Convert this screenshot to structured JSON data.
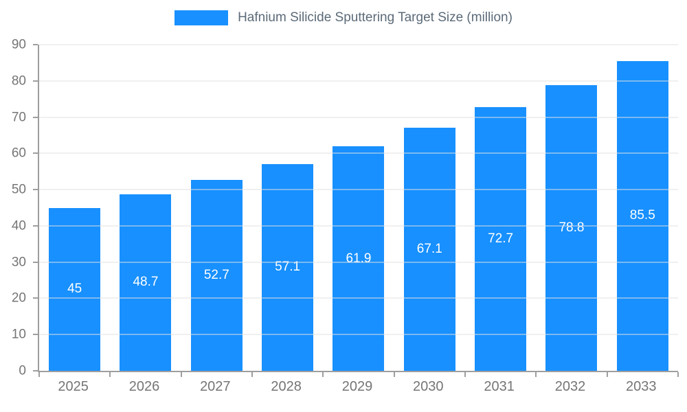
{
  "chart_data": {
    "type": "bar",
    "title": "Hafnium Silicide Sputtering Target Size (million)",
    "categories": [
      "2025",
      "2026",
      "2027",
      "2028",
      "2029",
      "2030",
      "2031",
      "2032",
      "2033"
    ],
    "values": [
      45,
      48.7,
      52.7,
      57.1,
      61.9,
      67.1,
      72.7,
      78.8,
      85.5
    ],
    "value_labels": [
      "45",
      "48.7",
      "52.7",
      "57.1",
      "61.9",
      "67.1",
      "72.7",
      "78.8",
      "85.5"
    ],
    "ylim": [
      0,
      90
    ],
    "yticks": [
      0,
      10,
      20,
      30,
      40,
      50,
      60,
      70,
      80,
      90
    ],
    "grid": true,
    "legend_position": "top",
    "colors": {
      "bar": "#1890ff",
      "grid": "#e0e0e0",
      "axis": "#9e9e9e",
      "tick_label": "#757575",
      "title": "#5b6a78",
      "value_label": "#ffffff"
    }
  }
}
